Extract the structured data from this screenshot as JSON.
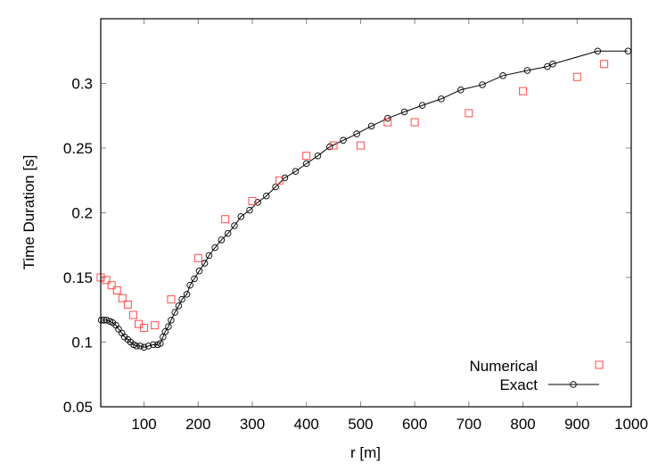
{
  "chart_data": {
    "type": "scatter",
    "title": "",
    "xlabel": "r [m]",
    "ylabel": "Time Duration [s]",
    "xlim": [
      20,
      1000
    ],
    "ylim": [
      0.05,
      0.35
    ],
    "xticks": [
      100,
      200,
      300,
      400,
      500,
      600,
      700,
      800,
      900,
      1000
    ],
    "xtick_labels": [
      "100",
      "200",
      "300",
      "400",
      "500",
      "600",
      "700",
      "800",
      "900",
      "1000"
    ],
    "yticks": [
      0.05,
      0.1,
      0.15,
      0.2,
      0.25,
      0.3
    ],
    "ytick_labels": [
      "0.05",
      "0.1",
      "0.15",
      "0.2",
      "0.25",
      "0.3"
    ],
    "grid": false,
    "legend_position": "bottom-right",
    "series": [
      {
        "name": "Numerical",
        "style": "points-square",
        "color": "#ff4d4d",
        "x": [
          20,
          30,
          40,
          50,
          60,
          70,
          80,
          90,
          100,
          120,
          150,
          200,
          250,
          300,
          350,
          400,
          450,
          500,
          550,
          600,
          700,
          800,
          900,
          950
        ],
        "y": [
          0.15,
          0.148,
          0.144,
          0.14,
          0.134,
          0.129,
          0.121,
          0.114,
          0.111,
          0.113,
          0.133,
          0.165,
          0.195,
          0.209,
          0.225,
          0.244,
          0.252,
          0.252,
          0.27,
          0.27,
          0.277,
          0.294,
          0.305,
          0.315
        ]
      },
      {
        "name": "Exact",
        "style": "line-circle",
        "color": "#000000",
        "x": [
          21,
          26,
          31,
          37,
          42,
          48,
          53,
          59,
          64,
          70,
          75,
          81,
          86,
          93,
          100,
          108,
          117,
          125,
          130,
          135,
          139,
          145,
          150,
          157,
          164,
          170,
          179,
          185,
          193,
          202,
          212,
          220,
          231,
          243,
          255,
          267,
          279,
          295,
          310,
          326,
          343,
          360,
          380,
          400,
          421,
          443,
          468,
          493,
          520,
          550,
          581,
          614,
          649,
          685,
          725,
          763,
          808,
          845,
          855,
          938,
          994
        ],
        "y": [
          0.117,
          0.117,
          0.117,
          0.116,
          0.115,
          0.113,
          0.11,
          0.107,
          0.104,
          0.102,
          0.1,
          0.098,
          0.097,
          0.097,
          0.096,
          0.097,
          0.098,
          0.098,
          0.099,
          0.104,
          0.108,
          0.112,
          0.117,
          0.123,
          0.128,
          0.133,
          0.137,
          0.144,
          0.149,
          0.155,
          0.161,
          0.167,
          0.173,
          0.179,
          0.184,
          0.19,
          0.197,
          0.202,
          0.208,
          0.213,
          0.22,
          0.227,
          0.232,
          0.238,
          0.244,
          0.251,
          0.256,
          0.261,
          0.267,
          0.273,
          0.278,
          0.283,
          0.288,
          0.295,
          0.299,
          0.306,
          0.31,
          0.313,
          0.315,
          0.325,
          0.325
        ]
      }
    ]
  }
}
